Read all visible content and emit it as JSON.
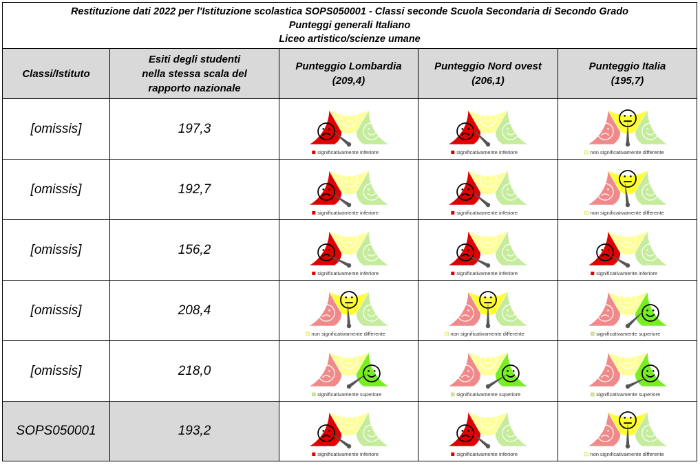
{
  "title": {
    "line1": "Restituzione dati 2022 per l'Istituzione scolastica SOPS050001 - Classi seconde Scuola Secondaria di Secondo Grado",
    "line2": "Punteggi generali Italiano",
    "line3": "Liceo artistico/scienze umane"
  },
  "headers": {
    "col1": "Classi/Istituto",
    "col2_lines": [
      "Esiti degli studenti",
      "nella stessa scala del",
      "rapporto nazionale"
    ],
    "col3_lines": [
      "Punteggio Lombardia",
      "(209,4)"
    ],
    "col4_lines": [
      "Punteggio Nord ovest",
      "(206,1)"
    ],
    "col5_lines": [
      "Punteggio Italia",
      "(195,7)"
    ]
  },
  "legend_labels": {
    "inferiore": "significativamente inferiore",
    "non_diff": "non significativamente differente",
    "superiore": "significativamente superiore"
  },
  "colors": {
    "red_active": "#e00000",
    "red_faded": "#f08a8a",
    "yellow_active": "#ffff33",
    "yellow_faded": "#ffff99",
    "green_active": "#77ee22",
    "green_faded": "#c4ec9c",
    "header_bg": "#d9d9d9",
    "needle": "#555555"
  },
  "rows": [
    {
      "class_label": "[omissis]",
      "score": "197,3",
      "results": [
        "inferiore",
        "inferiore",
        "non_diff"
      ],
      "needle_level": [
        0.22,
        0.25,
        0.5
      ]
    },
    {
      "class_label": "[omissis]",
      "score": "192,7",
      "results": [
        "inferiore",
        "inferiore",
        "non_diff"
      ],
      "needle_level": [
        0.19,
        0.22,
        0.46
      ]
    },
    {
      "class_label": "[omissis]",
      "score": "156,2",
      "results": [
        "inferiore",
        "inferiore",
        "inferiore"
      ],
      "needle_level": [
        0.15,
        0.15,
        0.17
      ]
    },
    {
      "class_label": "[omissis]",
      "score": "208,4",
      "results": [
        "non_diff",
        "non_diff",
        "superiore"
      ],
      "needle_level": [
        0.48,
        0.5,
        0.76
      ]
    },
    {
      "class_label": "[omissis]",
      "score": "218,0",
      "results": [
        "superiore",
        "superiore",
        "superiore"
      ],
      "needle_level": [
        0.8,
        0.82,
        0.86
      ]
    },
    {
      "class_label": "SOPS050001",
      "score": "193,2",
      "results": [
        "inferiore",
        "inferiore",
        "non_diff"
      ],
      "needle_level": [
        0.2,
        0.22,
        0.5
      ]
    }
  ]
}
